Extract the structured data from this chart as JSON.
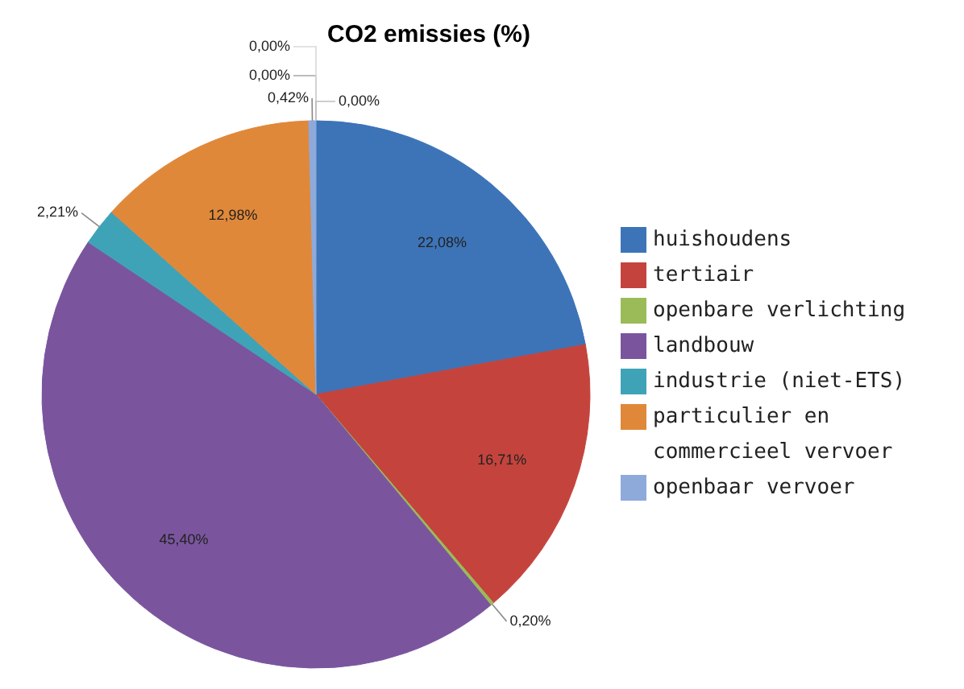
{
  "chart_data": {
    "type": "pie",
    "title": "CO2 emissies (%)",
    "categories": [
      "huishoudens",
      "tertiair",
      "openbare verlichting",
      "landbouw",
      "industrie (niet-ETS)",
      "particulier en commercieel vervoer",
      "openbaar vervoer",
      null,
      null,
      null
    ],
    "values": [
      22.08,
      16.71,
      0.2,
      45.4,
      2.21,
      12.98,
      0.42,
      0,
      0,
      0
    ],
    "value_labels": [
      "22,08%",
      "16,71%",
      "0,20%",
      "45,40%",
      "2,21%",
      "12,98%",
      "0,42%",
      "0,00%",
      "0,00%",
      "0,00%"
    ],
    "colors": [
      "#3d74b8",
      "#c4443d",
      "#9bbb59",
      "#7a559e",
      "#3fa3b8",
      "#e0883a",
      "#8eaadb",
      "#a6a6a6",
      "#d9d9d9",
      "#bfbfbf"
    ],
    "legend": "right"
  }
}
